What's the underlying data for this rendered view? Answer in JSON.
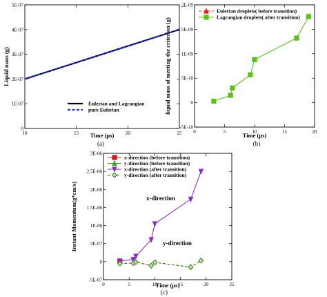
{
  "panels": {
    "a": "(a)",
    "b": "(b)",
    "c": "(c)"
  },
  "chart_data": [
    {
      "type": "line",
      "panel": "(a)",
      "xlabel": "Time (μs)",
      "ylabel": "Liquid mass (g)",
      "xlim": [
        10,
        25
      ],
      "ylim": [
        0,
        5e-07
      ],
      "xticks": [
        10,
        15,
        20,
        25
      ],
      "xtick_labels": [
        "10",
        "15",
        "20",
        "25"
      ],
      "yticks": [
        0,
        1e-07,
        2e-07,
        3e-07,
        4e-07,
        5e-07
      ],
      "ytick_labels": [
        "0",
        "1E-07",
        "2E-07",
        "3E-07",
        "4E-07",
        "5E-07"
      ],
      "legend_position": "bottom-right",
      "series": [
        {
          "name": "Eulerian and Lagrangian",
          "color": "#000000",
          "dash": "solid",
          "x": [
            10,
            25
          ],
          "y": [
            2e-07,
            4e-07
          ]
        },
        {
          "name": "pure Eulerian",
          "color": "#1f2fd0",
          "dash": "dashed",
          "x": [
            10,
            25
          ],
          "y": [
            2e-07,
            4e-07
          ]
        }
      ]
    },
    {
      "type": "line",
      "panel": "(b)",
      "xlabel": "Time (μs)",
      "ylabel": "liquid mass of meeting the criterion (g)",
      "xlim": [
        0,
        20
      ],
      "ylim": [
        -5e-10,
        2e-09
      ],
      "xticks": [
        0,
        5,
        10,
        15,
        20
      ],
      "xtick_labels": [
        "0",
        "5",
        "10",
        "15",
        "20"
      ],
      "yticks": [
        -5e-10,
        0,
        5e-10,
        1e-09,
        1.5e-09,
        2e-09
      ],
      "ytick_labels": [
        "-5E-10",
        "0",
        "5E-10",
        "1E-09",
        "1.5E-09",
        "2E-09"
      ],
      "legend_position": "top-left",
      "series": [
        {
          "name": "Eulerian droplets( before transition)",
          "color": "#d42020",
          "marker": "triangle",
          "dash": "dashed",
          "x": [
            19.0
          ],
          "y": [
            1.76e-09
          ]
        },
        {
          "name": "Lagrangian droplets( after transition)",
          "color": "#5cc01a",
          "marker": "square",
          "dash": "solid",
          "x": [
            3.2,
            6.0,
            6.3,
            9.3,
            10.0,
            17.0,
            19.0
          ],
          "y": [
            3e-11,
            1.5e-10,
            3e-10,
            5.7e-10,
            8.8e-10,
            1.32e-09,
            1.76e-09
          ]
        }
      ]
    },
    {
      "type": "line",
      "panel": "(c)",
      "xlabel": "Time (μs)",
      "ylabel": "Instant Momentum(g*cm/s)",
      "xlim": [
        0,
        25
      ],
      "ylim": [
        -5e-07,
        3e-06
      ],
      "xticks": [
        0,
        5,
        10,
        15,
        20,
        25
      ],
      "xtick_labels": [
        "0",
        "5",
        "10",
        "15",
        "20",
        "25"
      ],
      "yticks": [
        -5e-07,
        0,
        5e-07,
        1e-06,
        1.5e-06,
        2e-06,
        2.5e-06,
        3e-06
      ],
      "ytick_labels": [
        "-5E-07",
        "0",
        "5E-07",
        "1E-06",
        "1.5E-06",
        "2E-06",
        "2.5E-06",
        "3E-06"
      ],
      "legend_position": "top-left",
      "annotations": [
        "x-direction",
        "y-direction"
      ],
      "series": [
        {
          "name": "x-direction (before transition)",
          "color": "#cc1a1a",
          "marker": "square",
          "dash": "solid",
          "x": [
            3.2
          ],
          "y": [
            2e-08
          ]
        },
        {
          "name": "y-direction (before transition)",
          "color": "#3aa820",
          "marker": "triangle",
          "dash": "solid",
          "x": [
            3.2
          ],
          "y": [
            0
          ]
        },
        {
          "name": "x-direction (after transition)",
          "color": "#8a2fc0",
          "marker": "tri-down",
          "dash": "solid",
          "x": [
            3.2,
            5.8,
            6.3,
            9.3,
            10.0,
            17.0,
            19.0
          ],
          "y": [
            2e-08,
            6e-08,
            1.5e-07,
            6.1e-07,
            1.05e-06,
            1.73e-06,
            2.5e-06
          ]
        },
        {
          "name": "y-direction (after transition)",
          "color": "#2c6e10",
          "marker": "diamond",
          "dash": "dashed",
          "x": [
            3.2,
            5.8,
            6.3,
            9.3,
            10.0,
            17.0,
            19.0
          ],
          "y": [
            -5e-08,
            -4e-08,
            -1e-08,
            -1.1e-07,
            -2e-08,
            -1.5e-07,
            3e-08
          ]
        }
      ]
    }
  ]
}
